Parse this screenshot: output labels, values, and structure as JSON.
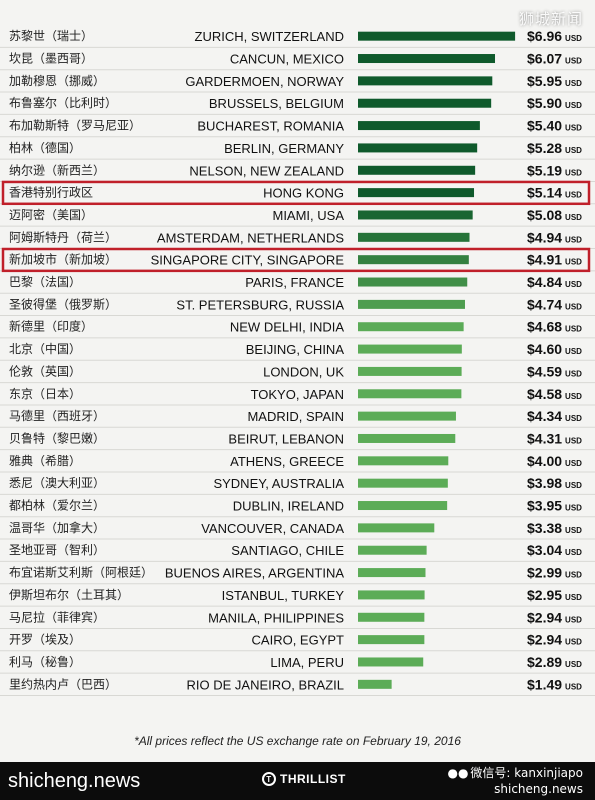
{
  "chart_data": {
    "type": "bar",
    "orientation": "horizontal",
    "currency_unit": "USD",
    "value_prefix": "$",
    "xlim": [
      0,
      7
    ],
    "highlighted": [
      "HONG KONG",
      "SINGAPORE CITY, SINGAPORE"
    ],
    "rows": [
      {
        "cn": "苏黎世（瑞士）",
        "city": "ZURICH, SWITZERLAND",
        "value": 6.96
      },
      {
        "cn": "坎昆（墨西哥）",
        "city": "CANCUN, MEXICO",
        "value": 6.07
      },
      {
        "cn": "加勒穆恩（挪威）",
        "city": "GARDERMOEN, NORWAY",
        "value": 5.95
      },
      {
        "cn": "布鲁塞尔（比利时）",
        "city": "BRUSSELS, BELGIUM",
        "value": 5.9
      },
      {
        "cn": "布加勒斯特（罗马尼亚）",
        "city": "BUCHAREST, ROMANIA",
        "value": 5.4
      },
      {
        "cn": "柏林（德国）",
        "city": "BERLIN, GERMANY",
        "value": 5.28
      },
      {
        "cn": "纳尔逊（新西兰）",
        "city": "NELSON, NEW ZEALAND",
        "value": 5.19
      },
      {
        "cn": "香港特别行政区",
        "city": "HONG KONG",
        "value": 5.14
      },
      {
        "cn": "迈阿密（美国）",
        "city": "MIAMI, USA",
        "value": 5.08
      },
      {
        "cn": "阿姆斯特丹（荷兰）",
        "city": "AMSTERDAM, NETHERLANDS",
        "value": 4.94
      },
      {
        "cn": "新加坡市（新加坡）",
        "city": "SINGAPORE CITY, SINGAPORE",
        "value": 4.91
      },
      {
        "cn": "巴黎（法国）",
        "city": "PARIS, FRANCE",
        "value": 4.84
      },
      {
        "cn": "圣彼得堡（俄罗斯）",
        "city": "ST. PETERSBURG, RUSSIA",
        "value": 4.74
      },
      {
        "cn": "新德里（印度）",
        "city": "NEW DELHI, INDIA",
        "value": 4.68
      },
      {
        "cn": "北京（中国）",
        "city": "BEIJING, CHINA",
        "value": 4.6
      },
      {
        "cn": "伦敦（英国）",
        "city": "LONDON, UK",
        "value": 4.59
      },
      {
        "cn": "东京（日本）",
        "city": "TOKYO, JAPAN",
        "value": 4.58
      },
      {
        "cn": "马德里（西班牙）",
        "city": "MADRID, SPAIN",
        "value": 4.34
      },
      {
        "cn": "贝鲁特（黎巴嫩）",
        "city": "BEIRUT, LEBANON",
        "value": 4.31
      },
      {
        "cn": "雅典（希腊）",
        "city": "ATHENS, GREECE",
        "value": 4.0
      },
      {
        "cn": "悉尼（澳大利亚）",
        "city": "SYDNEY, AUSTRALIA",
        "value": 3.98
      },
      {
        "cn": "都柏林（爱尔兰）",
        "city": "DUBLIN, IRELAND",
        "value": 3.95
      },
      {
        "cn": "温哥华（加拿大）",
        "city": "VANCOUVER, CANADA",
        "value": 3.38
      },
      {
        "cn": "圣地亚哥（智利）",
        "city": "SANTIAGO, CHILE",
        "value": 3.04
      },
      {
        "cn": "布宜诺斯艾利斯（阿根廷）",
        "city": "BUENOS AIRES, ARGENTINA",
        "value": 2.99
      },
      {
        "cn": "伊斯坦布尔（土耳其）",
        "city": "ISTANBUL, TURKEY",
        "value": 2.95
      },
      {
        "cn": "马尼拉（菲律宾）",
        "city": "MANILA, PHILIPPINES",
        "value": 2.94
      },
      {
        "cn": "开罗（埃及）",
        "city": "CAIRO, EGYPT",
        "value": 2.94
      },
      {
        "cn": "利马（秘鲁）",
        "city": "LIMA, PERU",
        "value": 2.89
      },
      {
        "cn": "里约热内卢（巴西）",
        "city": "RIO DE JANEIRO, BRAZIL",
        "value": 1.49
      }
    ],
    "footnote": "*All prices reflect the US exchange rate on February 19, 2016",
    "colors": {
      "bar_dark": "#0f5a2c",
      "bar_light": "#5cac57",
      "highlight_border": "#c0202a"
    }
  },
  "watermark_top": "狮城新闻",
  "footer": {
    "site": "shicheng.news",
    "logo": "THRILLIST",
    "wechat_label": "微信号: kanxinjiapo",
    "wechat_site": "shicheng.news"
  }
}
